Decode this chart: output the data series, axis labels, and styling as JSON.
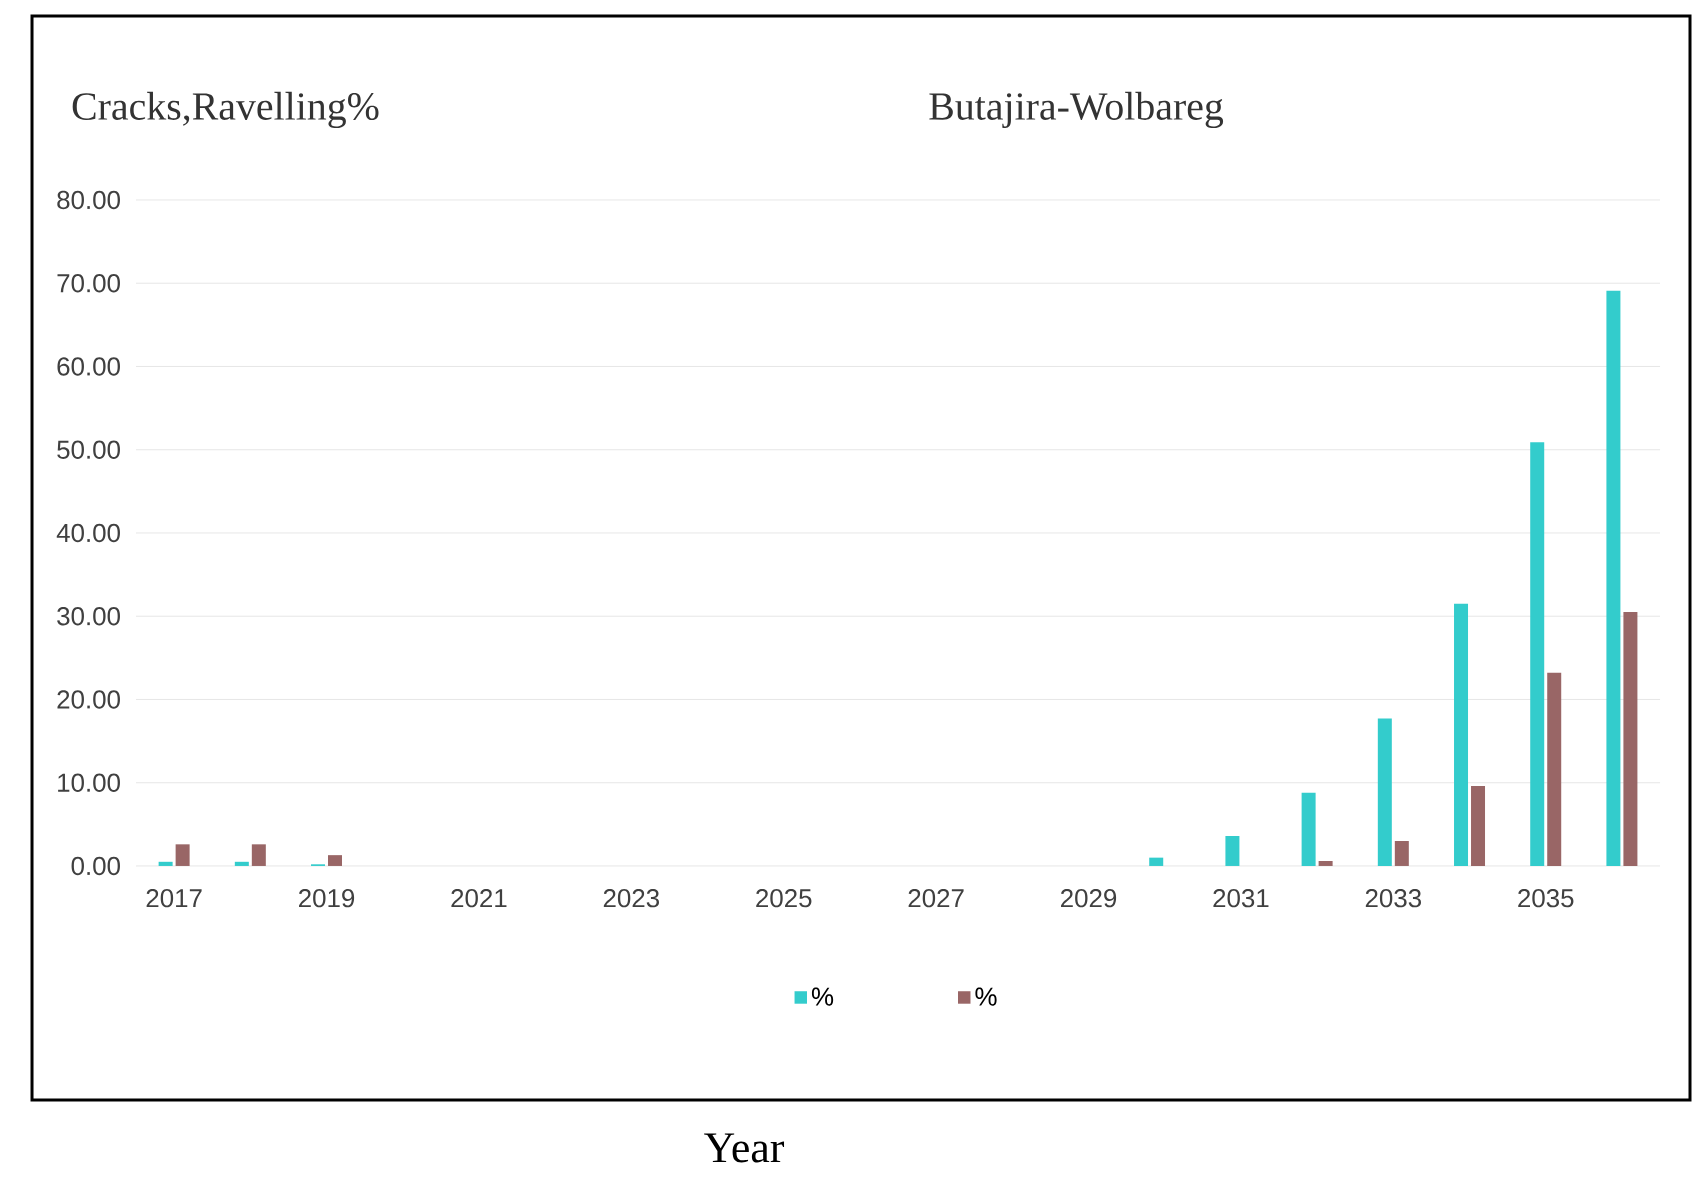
{
  "chart_data": {
    "type": "bar",
    "title": "Butajira-Wolbareg",
    "ylabel": "Cracks,Ravelling%",
    "annotations": [
      "Year"
    ],
    "categories": [
      "2017",
      null,
      "2019",
      null,
      "2021",
      null,
      "2023",
      null,
      "2025",
      null,
      "2027",
      null,
      "2029",
      null,
      "2031",
      null,
      "2033",
      null,
      "2035",
      null
    ],
    "series": [
      {
        "name": "%",
        "color": "#33cccc",
        "values": [
          0.5,
          0.5,
          0.2,
          0,
          0,
          0,
          0,
          0,
          0,
          0,
          0,
          0,
          0,
          1.0,
          3.6,
          8.8,
          17.7,
          31.5,
          50.9,
          69.1
        ]
      },
      {
        "name": "%",
        "color": "#996666",
        "values": [
          2.6,
          2.6,
          1.3,
          0,
          0,
          0,
          0,
          0,
          0,
          0,
          0,
          0,
          0,
          0,
          0,
          0.6,
          3.0,
          9.6,
          23.2,
          30.5
        ]
      }
    ],
    "ylim": [
      0,
      80
    ],
    "yticks": [
      {
        "value": 0,
        "label": "0.00"
      },
      {
        "value": 10,
        "label": "10.00"
      },
      {
        "value": 20,
        "label": "20.00"
      },
      {
        "value": 30,
        "label": "30.00"
      },
      {
        "value": 40,
        "label": "40.00"
      },
      {
        "value": 50,
        "label": "50.00"
      },
      {
        "value": 60,
        "label": "60.00"
      },
      {
        "value": 70,
        "label": "70.00"
      },
      {
        "value": 80,
        "label": "80.00"
      }
    ],
    "grid": "y",
    "legend": "bottom"
  }
}
